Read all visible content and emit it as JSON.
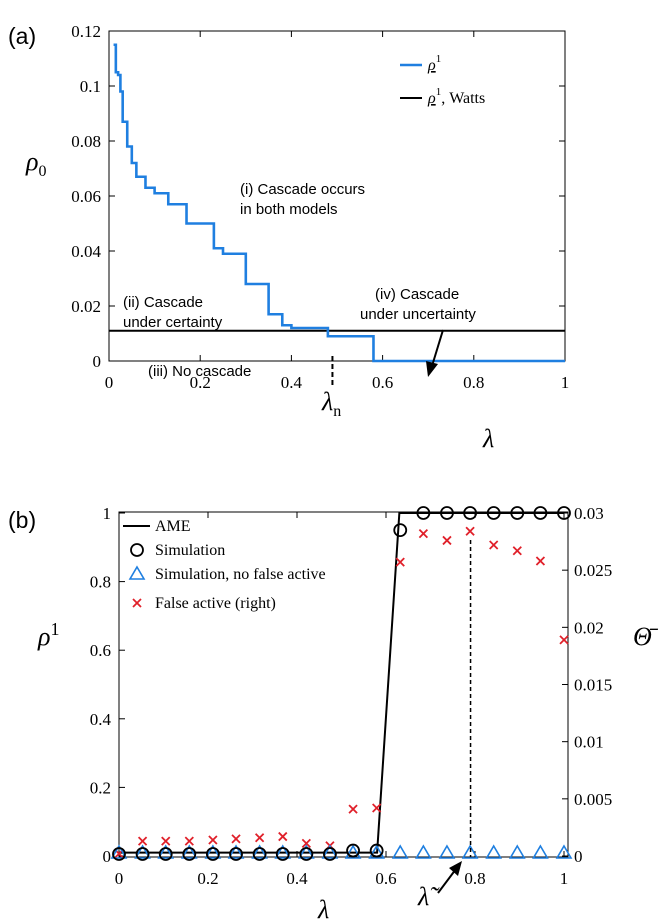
{
  "chart_data": [
    {
      "panel": "(a)",
      "type": "line",
      "xlabel": "λ",
      "ylabel": "ρ0",
      "xlim": [
        0,
        1
      ],
      "ylim": [
        0,
        0.12
      ],
      "xticks": [
        "0",
        "0.2",
        "0.4",
        "0.6",
        "0.8",
        "1"
      ],
      "yticks": [
        "0",
        "0.02",
        "0.04",
        "0.06",
        "0.08",
        "0.1",
        "0.12"
      ],
      "legend": [
        "ρ¹",
        "ρ¹, Watts"
      ],
      "legend_position": "top-right",
      "series": [
        {
          "name": "ρ¹",
          "color": "#1f7fe0",
          "step": true,
          "x": [
            0.01,
            0.015,
            0.02,
            0.025,
            0.03,
            0.04,
            0.05,
            0.06,
            0.07,
            0.08,
            0.09,
            0.1,
            0.11,
            0.12,
            0.13,
            0.14,
            0.15,
            0.16,
            0.17,
            0.18,
            0.19,
            0.2,
            0.21,
            0.22,
            0.23,
            0.24,
            0.25,
            0.26,
            0.27,
            0.28,
            0.29,
            0.3,
            0.31,
            0.32,
            0.33,
            0.34,
            0.35,
            0.36,
            0.37,
            0.38,
            0.4,
            0.42,
            0.44,
            0.46,
            0.48,
            0.5,
            0.52,
            0.54,
            0.56,
            0.58,
            0.6,
            0.7,
            0.8,
            0.9,
            1.0
          ],
          "y": [
            0.115,
            0.105,
            0.104,
            0.098,
            0.087,
            0.078,
            0.072,
            0.067,
            0.067,
            0.063,
            0.063,
            0.061,
            0.061,
            0.061,
            0.057,
            0.057,
            0.057,
            0.057,
            0.05,
            0.05,
            0.05,
            0.05,
            0.05,
            0.05,
            0.041,
            0.041,
            0.039,
            0.039,
            0.039,
            0.039,
            0.039,
            0.028,
            0.028,
            0.028,
            0.028,
            0.028,
            0.017,
            0.017,
            0.017,
            0.013,
            0.012,
            0.012,
            0.012,
            0.012,
            0.009,
            0.009,
            0.009,
            0.009,
            0.009,
            0.0,
            0.0,
            0.0,
            0.0,
            0.0,
            0.0
          ]
        },
        {
          "name": "ρ¹, Watts",
          "color": "#000000",
          "x": [
            0.0,
            1.0
          ],
          "y": [
            0.011,
            0.011
          ]
        }
      ],
      "annotations": {
        "region_i": [
          "(i) Cascade occurs",
          "in both models"
        ],
        "region_ii": [
          "(ii) Cascade",
          "under certainty"
        ],
        "region_iii": "(iii) No cascade",
        "region_iv": [
          "(iv) Cascade",
          "under uncertainty"
        ],
        "lambda_n": "λn",
        "lambda_n_value": 0.49
      }
    },
    {
      "panel": "(b)",
      "type": "line",
      "xlabel": "λ",
      "ylabel": "ρ1",
      "ylabel_right": "Θ̄",
      "xlim": [
        0,
        1
      ],
      "ylim": [
        0,
        1
      ],
      "ylim_right": [
        0,
        0.03
      ],
      "xticks": [
        "0",
        "0.2",
        "0.4",
        "0.6",
        "0.8",
        "1"
      ],
      "yticks": [
        "0",
        "0.2",
        "0.4",
        "0.6",
        "0.8",
        "1"
      ],
      "yticks_right": [
        "0",
        "0.005",
        "0.01",
        "0.015",
        "0.02",
        "0.025",
        "0.03"
      ],
      "legend_position": "top-left",
      "series": [
        {
          "name": "AME",
          "color": "#000000",
          "x": [
            0,
            0.58,
            0.63,
            1.0
          ],
          "y": [
            0.01,
            0.01,
            1.0,
            1.0
          ]
        },
        {
          "name": "Simulation",
          "marker": "circle",
          "color": "#000000",
          "x": [
            0.0,
            0.053,
            0.105,
            0.158,
            0.211,
            0.263,
            0.316,
            0.368,
            0.421,
            0.474,
            0.526,
            0.579,
            0.632,
            0.684,
            0.737,
            0.789,
            0.842,
            0.895,
            0.947,
            1.0
          ],
          "y": [
            0.0,
            0.0,
            0.0,
            0.0,
            0.0,
            0.0,
            0.0,
            0.0,
            0.0,
            0.0,
            0.01,
            0.01,
            0.95,
            1.0,
            1.0,
            1.0,
            1.0,
            1.0,
            1.0,
            1.0
          ]
        },
        {
          "name": "Simulation, no false active",
          "marker": "triangle",
          "color": "#1f7fe0",
          "x": [
            0.0,
            0.053,
            0.105,
            0.158,
            0.211,
            0.263,
            0.316,
            0.368,
            0.421,
            0.474,
            0.526,
            0.579,
            0.632,
            0.684,
            0.737,
            0.789,
            0.842,
            0.895,
            0.947,
            1.0
          ],
          "y": [
            0.0,
            0.0,
            0.0,
            0.0,
            0.0,
            0.0,
            0.0,
            0.0,
            0.0,
            0.0,
            0.0,
            0.0,
            0.0,
            0.0,
            0.0,
            0.0,
            0.0,
            0.0,
            0.0,
            0.0
          ]
        },
        {
          "name": "False active (right)",
          "marker": "x",
          "color": "#e0202a",
          "axis": "right",
          "x": [
            0.0,
            0.053,
            0.105,
            0.158,
            0.211,
            0.263,
            0.316,
            0.368,
            0.421,
            0.474,
            0.526,
            0.579,
            0.632,
            0.684,
            0.737,
            0.789,
            0.842,
            0.895,
            0.947,
            1.0
          ],
          "y": [
            0.0002,
            0.0013,
            0.0013,
            0.0013,
            0.0014,
            0.0015,
            0.0016,
            0.0017,
            0.0011,
            0.0009,
            0.0041,
            0.0042,
            0.0257,
            0.0282,
            0.0276,
            0.0284,
            0.0272,
            0.0267,
            0.0258,
            0.0189
          ]
        }
      ],
      "annotations": {
        "lambda_tilde": "λ̃",
        "lambda_tilde_value": 0.79
      }
    }
  ]
}
